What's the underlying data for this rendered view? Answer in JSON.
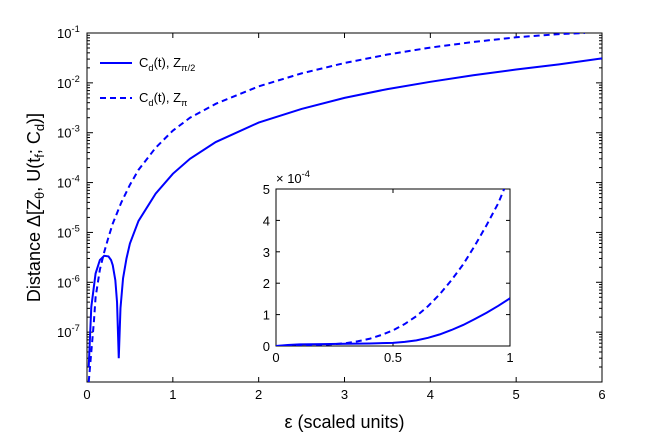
{
  "chart_data": [
    {
      "type": "line",
      "role": "main",
      "title": "",
      "xlabel": "ε (scaled units)",
      "ylabel": "Distance Δ[Zθ, U(tf; Cd)]",
      "xlim": [
        0,
        6
      ],
      "ylim": [
        1e-08,
        0.1
      ],
      "yscale": "log",
      "grid": false,
      "legend_position": "top-left",
      "x_ticks": [
        "0",
        "1",
        "2",
        "3",
        "4",
        "5",
        "6"
      ],
      "y_ticks": [
        "10^-7",
        "10^-6",
        "10^-5",
        "10^-4",
        "10^-3",
        "10^-2",
        "10^-1"
      ],
      "series": [
        {
          "name": "Cd(t), Zπ/2",
          "style": "solid",
          "color": "#0000ff",
          "x": [
            0.02,
            0.05,
            0.1,
            0.15,
            0.2,
            0.25,
            0.28,
            0.3,
            0.33,
            0.35,
            0.37,
            0.39,
            0.42,
            0.46,
            0.5,
            0.6,
            0.8,
            1.0,
            1.2,
            1.5,
            2.0,
            2.5,
            3.0,
            3.5,
            4.0,
            4.5,
            5.0,
            5.5,
            6.0
          ],
          "y": [
            2e-08,
            3.2e-07,
            1.5e-06,
            2.8e-06,
            3.4e-06,
            3.3e-06,
            2.8e-06,
            2.2e-06,
            1.1e-06,
            4e-07,
            3e-08,
            3e-07,
            1.2e-06,
            3e-06,
            6e-06,
            1.7e-05,
            6e-05,
            0.00015,
            0.0003,
            0.00065,
            0.0016,
            0.003,
            0.005,
            0.0075,
            0.0105,
            0.0142,
            0.0185,
            0.0235,
            0.031
          ]
        },
        {
          "name": "Cd(t), Zπ",
          "style": "dashed",
          "color": "#0000ff",
          "x": [
            0.02,
            0.05,
            0.08,
            0.1,
            0.15,
            0.2,
            0.25,
            0.3,
            0.4,
            0.5,
            0.6,
            0.8,
            1.0,
            1.2,
            1.5,
            2.0,
            2.5,
            3.0,
            3.5,
            4.0,
            4.5,
            5.0,
            5.5,
            5.8
          ],
          "y": [
            1e-08,
            4e-08,
            1.6e-07,
            5e-07,
            1.8e-06,
            4e-06,
            8e-06,
            1.5e-05,
            4e-05,
            9e-05,
            0.00018,
            0.0005,
            0.0011,
            0.002,
            0.0038,
            0.0085,
            0.0155,
            0.025,
            0.037,
            0.051,
            0.066,
            0.082,
            0.095,
            0.1
          ]
        }
      ]
    },
    {
      "type": "line",
      "role": "inset",
      "title": "",
      "xlabel": "",
      "ylabel": "",
      "xlim": [
        0,
        1
      ],
      "ylim": [
        0,
        5
      ],
      "y_multiplier": "× 10^-4",
      "grid": false,
      "x_ticks": [
        "0",
        "0.5",
        "1"
      ],
      "y_ticks": [
        "0",
        "1",
        "2",
        "3",
        "4",
        "5"
      ],
      "series": [
        {
          "style": "solid",
          "color": "#0000ff",
          "x": [
            0,
            0.05,
            0.1,
            0.2,
            0.3,
            0.4,
            0.5,
            0.55,
            0.6,
            0.65,
            0.7,
            0.75,
            0.8,
            0.85,
            0.9,
            0.95,
            1.0
          ],
          "y": [
            0.0,
            0.03,
            0.05,
            0.06,
            0.07,
            0.08,
            0.1,
            0.13,
            0.18,
            0.26,
            0.37,
            0.51,
            0.67,
            0.86,
            1.06,
            1.28,
            1.52
          ]
        },
        {
          "style": "dashed",
          "color": "#0000ff",
          "x": [
            0,
            0.1,
            0.2,
            0.25,
            0.3,
            0.35,
            0.4,
            0.45,
            0.5,
            0.55,
            0.6,
            0.65,
            0.7,
            0.75,
            0.8,
            0.85,
            0.9,
            0.95,
            0.975
          ],
          "y": [
            0.0,
            0.02,
            0.04,
            0.06,
            0.09,
            0.15,
            0.23,
            0.35,
            0.5,
            0.7,
            0.95,
            1.27,
            1.65,
            2.1,
            2.6,
            3.2,
            3.85,
            4.55,
            5.0
          ]
        }
      ]
    }
  ]
}
